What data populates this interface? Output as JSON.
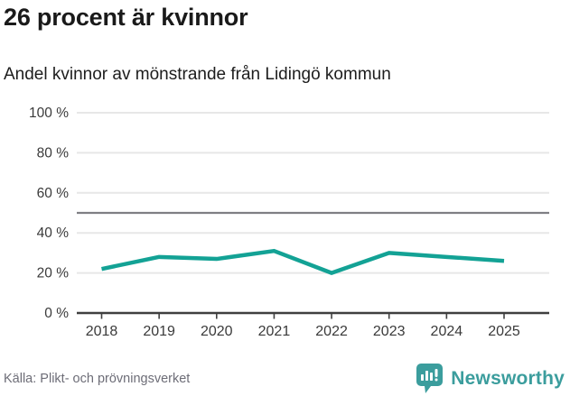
{
  "chart_data": {
    "type": "line",
    "title": "26 procent är kvinnor",
    "subtitle": "Andel kvinnor av mönstrande från Lidingö kommun",
    "categories": [
      "2018",
      "2019",
      "2020",
      "2021",
      "2022",
      "2023",
      "2024",
      "2025"
    ],
    "series": [
      {
        "name": "Andel kvinnor",
        "values": [
          22,
          28,
          27,
          31,
          20,
          30,
          28,
          26
        ]
      }
    ],
    "unit": "%",
    "xlabel": "",
    "ylabel": "",
    "ylim": [
      0,
      100
    ],
    "ytick_values": [
      0,
      20,
      40,
      60,
      80,
      100
    ],
    "ytick_labels": [
      "0 %",
      "20 %",
      "40 %",
      "60 %",
      "80 %",
      "100 %"
    ],
    "grid": true,
    "legend": false,
    "reference_line": {
      "value": 50,
      "color": "#7f7f84"
    },
    "colors": {
      "line": "#13a295",
      "grid": "#e7e7e7",
      "axis": "#3f3f3f",
      "tick_label": "#3a3a3a"
    }
  },
  "footer": {
    "source": "Källa: Plikt- och prövningsverket",
    "brand": "Newsworthy",
    "brand_color": "#3b9d9d",
    "logo_icon": "bar-chart-speech-bubble-icon"
  }
}
